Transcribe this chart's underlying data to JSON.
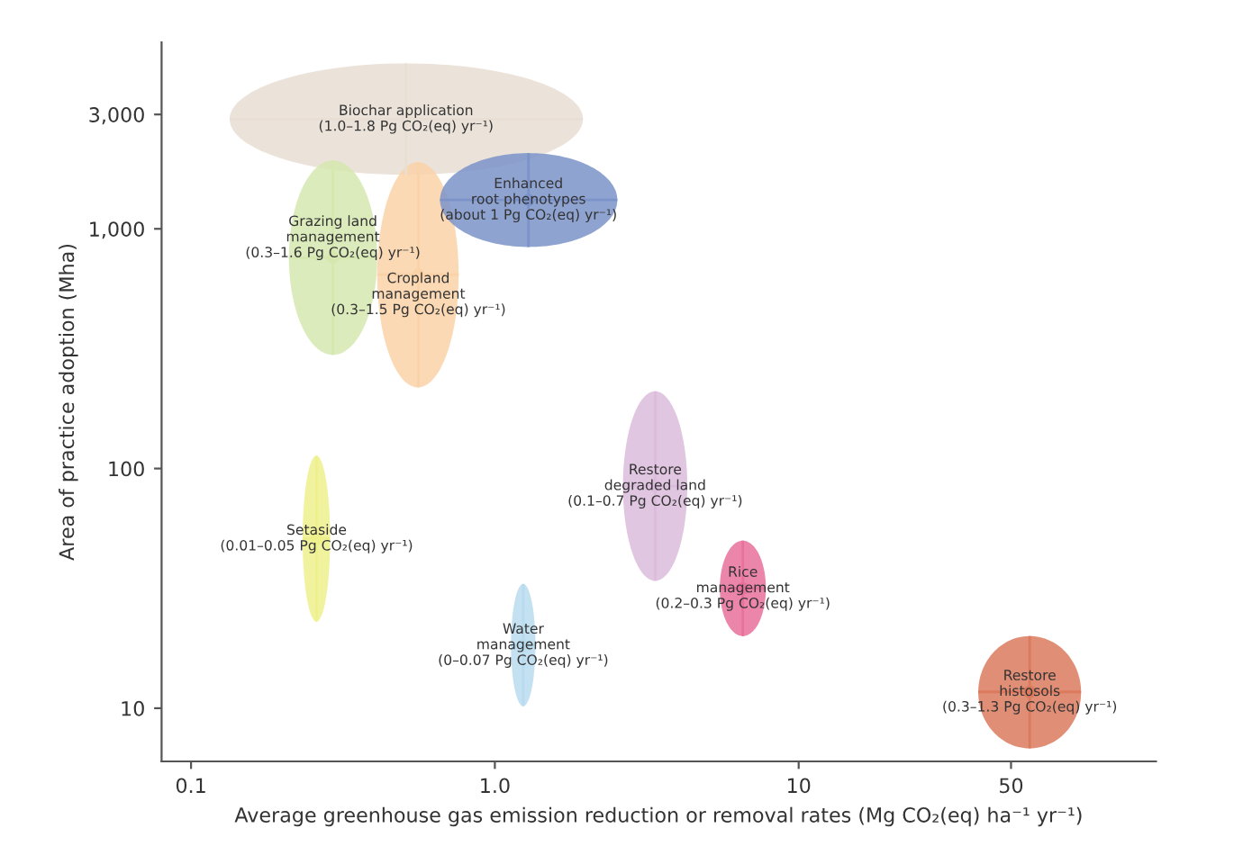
{
  "chart_data": {
    "type": "scatter",
    "xlabel": "Average greenhouse gas emission reduction or removal rates (Mg CO₂(eq) ha⁻¹ yr⁻¹)",
    "ylabel": "Area of practice adoption (Mha)",
    "log": "xy",
    "xlim": [
      0.08,
      150
    ],
    "xticks": [
      0.1,
      {
        "value": 1,
        "label": "1.0"
      },
      10,
      50
    ],
    "ylim": [
      6,
      6000
    ],
    "yticks": [
      10,
      100,
      {
        "value": 1000,
        "label": "1,000"
      },
      {
        "value": 3000,
        "label": "3,000"
      }
    ],
    "grid": false,
    "legend": false,
    "series": [
      {
        "name": "Biochar application\n(1.0–1.8 Pg CO₂(eq) yr⁻¹)",
        "color": "#e8ded3",
        "x": [
          0.51
        ],
        "values": [
          2870
        ],
        "xerrors": [
          [
            0.134,
            1.95
          ]
        ],
        "errors": [
          [
            1680,
            4900
          ]
        ]
      },
      {
        "name": "Grazing land\nmanagement\n(0.3–1.6 Pg CO₂(eq) yr⁻¹)",
        "color": "#d6e8b0",
        "x": [
          0.293
        ],
        "values": [
          758
        ],
        "xerrors": [
          [
            0.21,
            0.41
          ]
        ],
        "errors": [
          [
            298,
            1930
          ]
        ]
      },
      {
        "name": "Cropland\nmanagement\n(0.3–1.5 Pg CO₂(eq) yr⁻¹)",
        "color": "#fad2a8",
        "x": [
          0.56
        ],
        "values": [
          644
        ],
        "xerrors": [
          [
            0.41,
            0.76
          ]
        ],
        "errors": [
          [
            218,
            1900
          ]
        ]
      },
      {
        "name": "Enhanced\nroot phenotypes\n(about 1 Pg CO₂(eq) yr⁻¹)",
        "color": "#7b93c9",
        "x": [
          1.29
        ],
        "values": [
          1320
        ],
        "xerrors": [
          [
            0.66,
            2.53
          ]
        ],
        "errors": [
          [
            840,
            2070
          ]
        ]
      },
      {
        "name": "Restore\ndegraded land\n(0.1–0.7 Pg CO₂(eq) yr⁻¹)",
        "color": "#dcbcdc",
        "x": [
          3.37
        ],
        "values": [
          84.5
        ],
        "xerrors": [
          [
            2.64,
            4.3
          ]
        ],
        "errors": [
          [
            34,
            210
          ]
        ]
      },
      {
        "name": "Setaside\n(0.01–0.05 Pg CO₂(eq) yr⁻¹)",
        "color": "#eef08c",
        "x": [
          0.259
        ],
        "values": [
          51
        ],
        "xerrors": [
          [
            0.233,
            0.287
          ]
        ],
        "errors": [
          [
            23,
            113
          ]
        ]
      },
      {
        "name": "Rice\nmanagement\n(0.2–0.3 Pg CO₂(eq) yr⁻¹)",
        "color": "#e8709a",
        "x": [
          6.55
        ],
        "values": [
          31.6
        ],
        "xerrors": [
          [
            5.5,
            7.8
          ]
        ],
        "errors": [
          [
            20,
            50
          ]
        ]
      },
      {
        "name": "Water\nmanagement\n(0–0.07 Pg CO₂(eq) yr⁻¹)",
        "color": "#b8dcef",
        "x": [
          1.24
        ],
        "values": [
          18.3
        ],
        "xerrors": [
          [
            1.13,
            1.36
          ]
        ],
        "errors": [
          [
            10.2,
            33
          ]
        ]
      },
      {
        "name": "Restore\nhistosols\n(0.3–1.3 Pg CO₂(eq) yr⁻¹)",
        "color": "#dc7a5e",
        "x": [
          57.6
        ],
        "values": [
          11.7
        ],
        "xerrors": [
          [
            39,
            85
          ]
        ],
        "errors": [
          [
            6.8,
            20
          ]
        ]
      }
    ]
  }
}
